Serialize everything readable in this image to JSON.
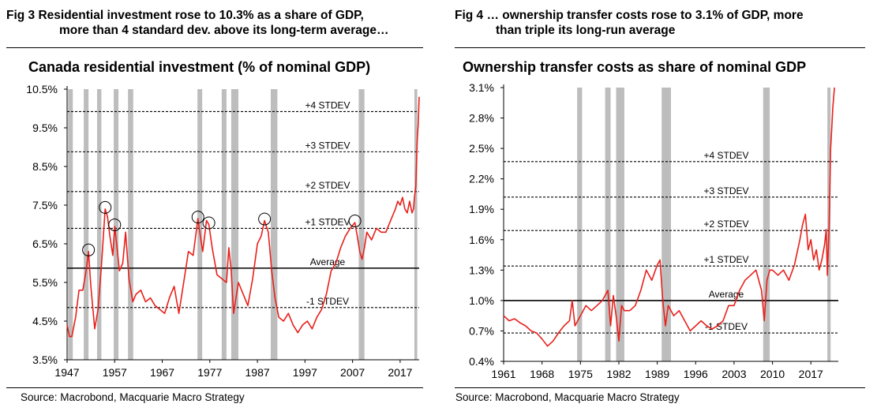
{
  "fig3": {
    "header_line1": "Fig 3 Residential investment rose to 10.3% as a share of GDP,",
    "header_line2": "more than 4 standard dev. above its long-term average…",
    "source": "Source:  Macrobond, Macquarie Macro Strategy"
  },
  "fig4": {
    "header_line1": "Fig 4  …  ownership transfer costs rose to 3.1% of GDP, more",
    "header_line2": "than triple its long-run average",
    "source": "Source: Macrobond, Macquarie Macro Strategy"
  },
  "colors": {
    "series": "#e8201b",
    "recession": "#bdbdbd",
    "axis": "#000000"
  },
  "chart_data": [
    {
      "id": "fig3",
      "type": "line",
      "title": "Canada residential investment (% of nominal GDP)",
      "xlabel": "",
      "ylabel": "",
      "xlim": [
        1947,
        2021
      ],
      "ylim": [
        3.5,
        10.5
      ],
      "x_ticks": [
        1947,
        1957,
        1967,
        1977,
        1987,
        1997,
        2007,
        2017
      ],
      "y_ticks": [
        3.5,
        4.5,
        5.5,
        6.5,
        7.5,
        8.5,
        9.5,
        10.5
      ],
      "y_tick_labels": [
        "3.5%",
        "4.5%",
        "5.5%",
        "6.5%",
        "7.5%",
        "8.5%",
        "9.5%",
        "10.5%"
      ],
      "legend": "none",
      "grid": false,
      "recessions": [
        [
          1947.2,
          1948.2
        ],
        [
          1950.5,
          1951.5
        ],
        [
          1953.3,
          1954.2
        ],
        [
          1956.8,
          1957.8
        ],
        [
          1959.8,
          1960.9
        ],
        [
          1974.4,
          1975.4
        ],
        [
          1979.5,
          1980.5
        ],
        [
          1981.5,
          1983.0
        ],
        [
          1989.8,
          1991.2
        ],
        [
          2008.3,
          2009.5
        ],
        [
          2020.0,
          2020.6
        ]
      ],
      "reference_lines": [
        {
          "label": "+4 STDEV",
          "value": 9.92,
          "style": "dashed"
        },
        {
          "label": "+3 STDEV",
          "value": 8.88,
          "style": "dashed"
        },
        {
          "label": "+2 STDEV",
          "value": 7.85,
          "style": "dashed"
        },
        {
          "label": "+1 STDEV",
          "value": 6.9,
          "style": "dashed"
        },
        {
          "label": "Average",
          "value": 5.87,
          "style": "solid"
        },
        {
          "label": "-1 STDEV",
          "value": 4.85,
          "style": "dashed"
        }
      ],
      "highlighted_peaks": [
        [
          1951.5,
          6.3
        ],
        [
          1955.0,
          7.4
        ],
        [
          1957.0,
          6.95
        ],
        [
          1974.5,
          7.15
        ],
        [
          1976.8,
          7.0
        ],
        [
          1988.5,
          7.1
        ],
        [
          2007.5,
          7.05
        ]
      ],
      "series": [
        {
          "name": "Canada residential investment",
          "x": [
            1947,
            1947.5,
            1948,
            1948.8,
            1949.5,
            1950.3,
            1951,
            1951.5,
            1952,
            1952.8,
            1953.5,
            1954.2,
            1955,
            1955.5,
            1956,
            1956.6,
            1957,
            1957.4,
            1958,
            1958.7,
            1959.3,
            1960,
            1960.8,
            1961.5,
            1962.5,
            1963.5,
            1964.5,
            1965.5,
            1966.5,
            1967.5,
            1968.5,
            1969.5,
            1970.5,
            1971.5,
            1972.5,
            1973.5,
            1974.5,
            1975,
            1975.5,
            1976.3,
            1976.8,
            1977.5,
            1978.5,
            1979.5,
            1980.5,
            1981,
            1981.5,
            1982,
            1983,
            1984,
            1985,
            1986,
            1987,
            1987.8,
            1988.5,
            1989.3,
            1990,
            1990.7,
            1991.5,
            1992.5,
            1993.5,
            1994.5,
            1995.5,
            1996.5,
            1997.5,
            1998.5,
            1999.5,
            2000.5,
            2001.5,
            2002.5,
            2003.5,
            2004.5,
            2005.5,
            2006.5,
            2007.5,
            2008,
            2008.5,
            2009,
            2009.5,
            2010,
            2011,
            2012,
            2013,
            2014,
            2015,
            2016,
            2016.5,
            2017,
            2017.5,
            2018,
            2018.5,
            2019,
            2019.5,
            2019.8,
            2020,
            2020.3,
            2020.6,
            2020.8,
            2021
          ],
          "values": [
            4.4,
            4.1,
            4.1,
            4.6,
            5.3,
            5.3,
            5.8,
            6.3,
            5.4,
            4.3,
            4.8,
            5.9,
            7.4,
            7.2,
            6.7,
            6.2,
            6.95,
            6.5,
            5.8,
            6.0,
            6.8,
            5.6,
            5.0,
            5.2,
            5.3,
            5.0,
            5.1,
            4.9,
            4.8,
            4.7,
            5.1,
            5.4,
            4.7,
            5.5,
            6.3,
            6.2,
            7.15,
            6.7,
            6.3,
            7.1,
            7.0,
            6.4,
            5.7,
            5.6,
            5.5,
            6.4,
            5.8,
            4.7,
            5.5,
            5.2,
            4.9,
            5.6,
            6.5,
            6.7,
            7.1,
            6.8,
            5.8,
            5.1,
            4.6,
            4.5,
            4.7,
            4.4,
            4.2,
            4.4,
            4.5,
            4.3,
            4.6,
            4.8,
            5.2,
            5.8,
            6.0,
            6.4,
            6.7,
            6.9,
            7.05,
            6.7,
            6.3,
            6.1,
            6.4,
            6.8,
            6.6,
            6.9,
            6.8,
            6.8,
            7.1,
            7.4,
            7.6,
            7.5,
            7.7,
            7.4,
            7.3,
            7.6,
            7.3,
            7.4,
            7.7,
            8.0,
            9.2,
            9.6,
            10.3
          ]
        }
      ]
    },
    {
      "id": "fig4",
      "type": "line",
      "title": "Ownership transfer costs as share of nominal GDP",
      "xlabel": "",
      "ylabel": "",
      "xlim": [
        1961,
        2022
      ],
      "ylim": [
        0.4,
        3.1
      ],
      "x_ticks": [
        1961,
        1968,
        1975,
        1982,
        1989,
        1996,
        2003,
        2010,
        2017
      ],
      "y_ticks": [
        0.4,
        0.7,
        1.0,
        1.3,
        1.6,
        1.9,
        2.2,
        2.5,
        2.8,
        3.1
      ],
      "y_tick_labels": [
        "0.4%",
        "0.7%",
        "1.0%",
        "1.3%",
        "1.6%",
        "1.9%",
        "2.2%",
        "2.5%",
        "2.8%",
        "3.1%"
      ],
      "legend": "none",
      "grid": false,
      "recessions": [
        [
          1974.4,
          1975.3
        ],
        [
          1979.5,
          1980.5
        ],
        [
          1981.5,
          1983.0
        ],
        [
          1989.8,
          1991.5
        ],
        [
          2008.3,
          2009.5
        ],
        [
          2020.0,
          2020.6
        ]
      ],
      "reference_lines": [
        {
          "label": "+4 STDEV",
          "value": 2.37,
          "style": "dashed"
        },
        {
          "label": "+3 STDEV",
          "value": 2.02,
          "style": "dashed"
        },
        {
          "label": "+2 STDEV",
          "value": 1.69,
          "style": "dashed"
        },
        {
          "label": "+1 STDEV",
          "value": 1.34,
          "style": "dashed"
        },
        {
          "label": "Average",
          "value": 1.0,
          "style": "solid"
        },
        {
          "label": "-1 STDEV",
          "value": 0.68,
          "style": "dashed"
        }
      ],
      "series": [
        {
          "name": "Ownership transfer costs",
          "x": [
            1961,
            1962,
            1963,
            1964,
            1965,
            1966,
            1967,
            1968,
            1969,
            1970,
            1971,
            1972,
            1973,
            1973.5,
            1974,
            1975,
            1976,
            1977,
            1978,
            1979,
            1980,
            1980.5,
            1981,
            1981.5,
            1982,
            1982.5,
            1983,
            1984,
            1985,
            1986,
            1987,
            1988,
            1989,
            1989.5,
            1990,
            1990.5,
            1991,
            1992,
            1993,
            1994,
            1995,
            1996,
            1997,
            1998,
            1999,
            2000,
            2001,
            2002,
            2003,
            2004,
            2005,
            2006,
            2007,
            2008,
            2008.5,
            2009,
            2009.5,
            2010,
            2011,
            2012,
            2013,
            2014,
            2015,
            2015.5,
            2016,
            2016.5,
            2017,
            2017.5,
            2018,
            2018.5,
            2019,
            2019.5,
            2019.8,
            2020,
            2020.3,
            2020.6,
            2020.8,
            2021,
            2021.3
          ],
          "values": [
            0.85,
            0.8,
            0.82,
            0.78,
            0.75,
            0.7,
            0.68,
            0.62,
            0.55,
            0.6,
            0.68,
            0.75,
            0.8,
            1.0,
            0.75,
            0.85,
            0.95,
            0.9,
            0.95,
            1.0,
            1.1,
            0.75,
            1.05,
            0.85,
            0.6,
            0.95,
            0.9,
            0.9,
            0.95,
            1.1,
            1.3,
            1.2,
            1.35,
            1.4,
            1.0,
            0.75,
            0.95,
            0.85,
            0.9,
            0.8,
            0.7,
            0.75,
            0.8,
            0.75,
            0.72,
            0.75,
            0.8,
            0.95,
            0.95,
            1.1,
            1.2,
            1.25,
            1.3,
            1.1,
            0.8,
            1.2,
            1.3,
            1.3,
            1.25,
            1.3,
            1.2,
            1.35,
            1.6,
            1.75,
            1.85,
            1.5,
            1.6,
            1.4,
            1.5,
            1.3,
            1.4,
            1.55,
            1.7,
            1.25,
            1.7,
            2.5,
            2.7,
            2.9,
            3.1
          ]
        }
      ]
    }
  ]
}
